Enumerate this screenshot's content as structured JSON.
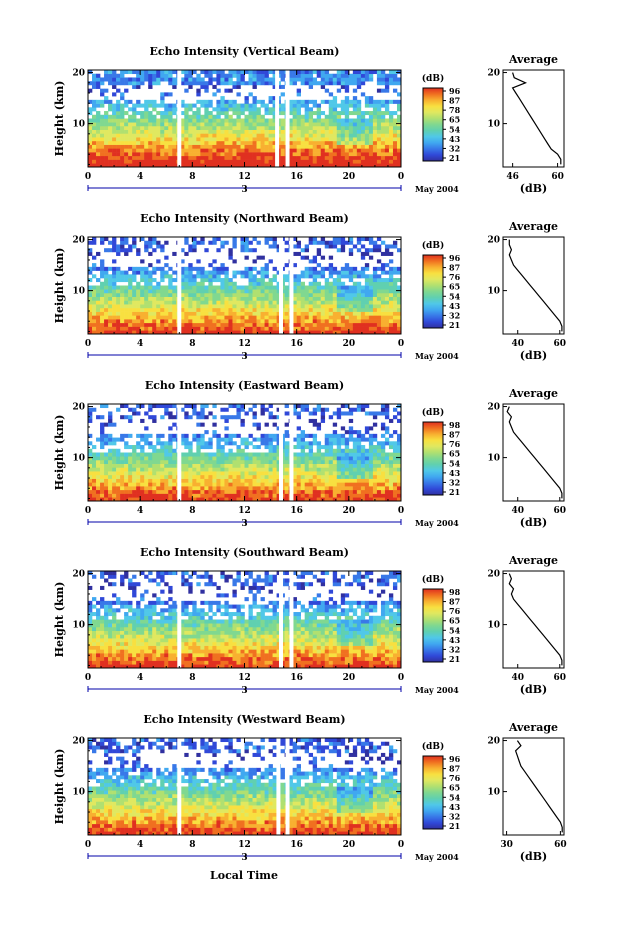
{
  "figure": {
    "xlabel": "Local Time",
    "date_label": "May 2004",
    "day_label": "3"
  },
  "colors": {
    "scale": [
      "#3030a0",
      "#3048d8",
      "#3878e8",
      "#40a8f0",
      "#50c8e8",
      "#60d0b0",
      "#80d890",
      "#b0e070",
      "#e0e860",
      "#f8e040",
      "#f8b030",
      "#f07020",
      "#e03020"
    ]
  },
  "chart_data": [
    {
      "type": "heatmap",
      "title": "Echo Intensity (Vertical Beam)",
      "ylabel": "Height (km)",
      "x_ticks": [
        "0",
        "4",
        "8",
        "12",
        "16",
        "20",
        "0"
      ],
      "y_ticks": [
        "20",
        "10"
      ],
      "xlim": [
        0,
        24
      ],
      "ylim": [
        1.5,
        20.5
      ],
      "gaps": [
        7,
        14.5,
        15.3
      ],
      "colorbar": {
        "label": "(dB)",
        "ticks": [
          "96",
          "87",
          "78",
          "65",
          "54",
          "43",
          "32",
          "21"
        ]
      },
      "profile": {
        "title": "Average",
        "xlabel": "(dB)",
        "x_ticks": [
          "46",
          "60"
        ],
        "y_ticks": [
          "20",
          "10"
        ],
        "xlim": [
          43,
          62
        ],
        "ylim": [
          1.5,
          20.5
        ],
        "height_km": [
          20,
          19,
          18,
          17,
          16,
          15,
          14,
          13,
          12,
          11,
          10,
          9,
          8,
          7,
          6,
          5,
          4,
          3,
          2
        ],
        "values_db": [
          46,
          46.5,
          50,
          46,
          47,
          48,
          49,
          50,
          51,
          52,
          53,
          54,
          55,
          56,
          57,
          58,
          60,
          61,
          61
        ]
      }
    },
    {
      "type": "heatmap",
      "title": "Echo Intensity (Northward Beam)",
      "ylabel": "Height (km)",
      "x_ticks": [
        "0",
        "4",
        "8",
        "12",
        "16",
        "20",
        "0"
      ],
      "y_ticks": [
        "20",
        "10"
      ],
      "xlim": [
        0,
        24
      ],
      "ylim": [
        1.5,
        20.5
      ],
      "gaps": [
        7,
        14.8,
        15.6
      ],
      "colorbar": {
        "label": "(dB)",
        "ticks": [
          "96",
          "87",
          "76",
          "65",
          "54",
          "43",
          "32",
          "21"
        ]
      },
      "profile": {
        "title": "Average",
        "xlabel": "(dB)",
        "x_ticks": [
          "40",
          "60"
        ],
        "y_ticks": [
          "20",
          "10"
        ],
        "xlim": [
          33,
          62
        ],
        "ylim": [
          1.5,
          20.5
        ],
        "height_km": [
          20,
          19,
          18,
          17,
          16,
          15,
          14,
          13,
          12,
          11,
          10,
          9,
          8,
          7,
          6,
          5,
          4,
          3,
          2
        ],
        "values_db": [
          36,
          36,
          37,
          36,
          37,
          38,
          40,
          42,
          44,
          46,
          48,
          50,
          52,
          54,
          56,
          58,
          60,
          61,
          61
        ]
      }
    },
    {
      "type": "heatmap",
      "title": "Echo Intensity (Eastward Beam)",
      "ylabel": "Height (km)",
      "x_ticks": [
        "0",
        "4",
        "8",
        "12",
        "16",
        "20",
        "0"
      ],
      "y_ticks": [
        "20",
        "10"
      ],
      "xlim": [
        0,
        24
      ],
      "ylim": [
        1.5,
        20.5
      ],
      "gaps": [
        7,
        14.8,
        15.6
      ],
      "colorbar": {
        "label": "(dB)",
        "ticks": [
          "98",
          "87",
          "76",
          "65",
          "54",
          "43",
          "32",
          "21"
        ]
      },
      "profile": {
        "title": "Average",
        "xlabel": "(dB)",
        "x_ticks": [
          "40",
          "60"
        ],
        "y_ticks": [
          "20",
          "10"
        ],
        "xlim": [
          33,
          62
        ],
        "ylim": [
          1.5,
          20.5
        ],
        "height_km": [
          20,
          19,
          18,
          17,
          16,
          15,
          14,
          13,
          12,
          11,
          10,
          9,
          8,
          7,
          6,
          5,
          4,
          3,
          2
        ],
        "values_db": [
          36,
          35,
          37,
          36,
          37,
          38,
          40,
          42,
          44,
          46,
          48,
          50,
          52,
          54,
          56,
          58,
          60,
          61,
          61
        ]
      }
    },
    {
      "type": "heatmap",
      "title": "Echo Intensity (Southward Beam)",
      "ylabel": "Height (km)",
      "x_ticks": [
        "0",
        "4",
        "8",
        "12",
        "16",
        "20",
        "0"
      ],
      "y_ticks": [
        "20",
        "10"
      ],
      "xlim": [
        0,
        24
      ],
      "ylim": [
        1.5,
        20.5
      ],
      "gaps": [
        7,
        14.8,
        15.6
      ],
      "colorbar": {
        "label": "(dB)",
        "ticks": [
          "98",
          "87",
          "76",
          "65",
          "54",
          "43",
          "32",
          "21"
        ]
      },
      "profile": {
        "title": "Average",
        "xlabel": "(dB)",
        "x_ticks": [
          "40",
          "60"
        ],
        "y_ticks": [
          "20",
          "10"
        ],
        "xlim": [
          33,
          62
        ],
        "ylim": [
          1.5,
          20.5
        ],
        "height_km": [
          20,
          19,
          18,
          17,
          16,
          15,
          14,
          13,
          12,
          11,
          10,
          9,
          8,
          7,
          6,
          5,
          4,
          3,
          2
        ],
        "values_db": [
          36,
          37,
          36,
          38,
          37,
          38,
          40,
          42,
          44,
          46,
          48,
          50,
          52,
          54,
          56,
          58,
          60,
          61,
          61
        ]
      }
    },
    {
      "type": "heatmap",
      "title": "Echo Intensity (Westward Beam)",
      "ylabel": "Height (km)",
      "x_ticks": [
        "0",
        "4",
        "8",
        "12",
        "16",
        "20",
        "0"
      ],
      "y_ticks": [
        "20",
        "10"
      ],
      "xlim": [
        0,
        24
      ],
      "ylim": [
        1.5,
        20.5
      ],
      "gaps": [
        7,
        14.6,
        15.3
      ],
      "colorbar": {
        "label": "(dB)",
        "ticks": [
          "96",
          "87",
          "76",
          "65",
          "54",
          "43",
          "32",
          "21"
        ]
      },
      "profile": {
        "title": "Average",
        "xlabel": "(dB)",
        "x_ticks": [
          "30",
          "60"
        ],
        "y_ticks": [
          "20",
          "10"
        ],
        "xlim": [
          28,
          62
        ],
        "ylim": [
          1.5,
          20.5
        ],
        "height_km": [
          20,
          19,
          18,
          17,
          16,
          15,
          14,
          13,
          12,
          11,
          10,
          9,
          8,
          7,
          6,
          5,
          4,
          3,
          2
        ],
        "values_db": [
          36,
          38,
          35,
          36,
          37,
          38,
          40,
          42,
          44,
          46,
          48,
          50,
          52,
          54,
          56,
          58,
          60,
          61,
          61
        ]
      }
    }
  ]
}
